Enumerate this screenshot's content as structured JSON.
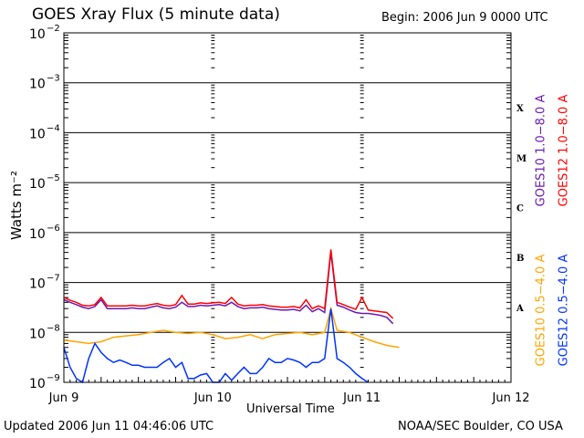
{
  "header": {
    "title": "GOES Xray Flux (5 minute data)",
    "begin": "Begin:  2006 Jun 9 0000 UTC"
  },
  "footer": {
    "updated": "Updated 2006 Jun 11 04:46:06 UTC",
    "credit": "NOAA/SEC Boulder, CO USA"
  },
  "chart_data": {
    "type": "line",
    "title": "GOES Xray Flux (5 minute data)",
    "xlabel": "Universal Time",
    "ylabel": "Watts m⁻²",
    "yscale": "log",
    "ylim": [
      1e-09,
      0.01
    ],
    "xlim": [
      0,
      72
    ],
    "x_unit": "hours since 2006 Jun 9 0000 UTC",
    "x_ticks": [
      {
        "x": 0,
        "label": "Jun 9"
      },
      {
        "x": 24,
        "label": "Jun 10"
      },
      {
        "x": 48,
        "label": "Jun 11"
      },
      {
        "x": 72,
        "label": "Jun 12"
      }
    ],
    "y_ticks": [
      {
        "exp": -9,
        "label": "10",
        "sup": "−9"
      },
      {
        "exp": -8,
        "label": "10",
        "sup": "−8"
      },
      {
        "exp": -7,
        "label": "10",
        "sup": "−7"
      },
      {
        "exp": -6,
        "label": "10",
        "sup": "−6"
      },
      {
        "exp": -5,
        "label": "10",
        "sup": "−5"
      },
      {
        "exp": -4,
        "label": "10",
        "sup": "−4"
      },
      {
        "exp": -3,
        "label": "10",
        "sup": "−3"
      },
      {
        "exp": -2,
        "label": "10",
        "sup": "−2"
      }
    ],
    "flare_classes": [
      {
        "label": "A",
        "exp": -7.5
      },
      {
        "label": "B",
        "exp": -6.5
      },
      {
        "label": "C",
        "exp": -5.5
      },
      {
        "label": "M",
        "exp": -4.5
      },
      {
        "label": "X",
        "exp": -3.5
      }
    ],
    "series": [
      {
        "name": "GOES10 1.0−8.0 A",
        "color": "#6a1bb0",
        "x": [
          0,
          1,
          2,
          3,
          4,
          5,
          6,
          7,
          8,
          9,
          10,
          11,
          12,
          13,
          14,
          15,
          16,
          17,
          18,
          19,
          20,
          21,
          22,
          23,
          24,
          25,
          26,
          27,
          28,
          29,
          30,
          31,
          32,
          33,
          34,
          35,
          36,
          37,
          38,
          39,
          40,
          41,
          42,
          43,
          44,
          45,
          46,
          47,
          48,
          49,
          50,
          51,
          52,
          53
        ],
        "y": [
          4.5e-08,
          4e-08,
          3.6e-08,
          3.2e-08,
          3e-08,
          3.3e-08,
          4.5e-08,
          3e-08,
          3e-08,
          3e-08,
          3e-08,
          3.1e-08,
          3e-08,
          3e-08,
          3.2e-08,
          3.4e-08,
          3.1e-08,
          3e-08,
          3.2e-08,
          4e-08,
          3.3e-08,
          3.3e-08,
          3.5e-08,
          3.4e-08,
          3.5e-08,
          3.6e-08,
          3.4e-08,
          4e-08,
          3.3e-08,
          3e-08,
          3.1e-08,
          3.1e-08,
          3.2e-08,
          3e-08,
          2.9e-08,
          2.8e-08,
          2.8e-08,
          2.9e-08,
          2.7e-08,
          3.5e-08,
          2.6e-08,
          3e-08,
          2.5e-08,
          4e-07,
          3.5e-08,
          3.2e-08,
          2.8e-08,
          2.5e-08,
          2.4e-08,
          2.4e-08,
          2.3e-08,
          2.2e-08,
          2e-08,
          1.5e-08
        ]
      },
      {
        "name": "GOES12 1.0−8.0 A",
        "color": "#ff0000",
        "x": [
          0,
          1,
          2,
          3,
          4,
          5,
          6,
          7,
          8,
          9,
          10,
          11,
          12,
          13,
          14,
          15,
          16,
          17,
          18,
          19,
          20,
          21,
          22,
          23,
          24,
          25,
          26,
          27,
          28,
          29,
          30,
          31,
          32,
          33,
          34,
          35,
          36,
          37,
          38,
          39,
          40,
          41,
          42,
          43,
          44,
          45,
          46,
          47,
          48,
          49,
          50,
          51,
          52,
          53
        ],
        "y": [
          5e-08,
          4.4e-08,
          4e-08,
          3.5e-08,
          3.4e-08,
          3.6e-08,
          5e-08,
          3.4e-08,
          3.4e-08,
          3.4e-08,
          3.4e-08,
          3.5e-08,
          3.4e-08,
          3.4e-08,
          3.6e-08,
          3.8e-08,
          3.5e-08,
          3.4e-08,
          3.6e-08,
          5.5e-08,
          3.7e-08,
          3.7e-08,
          3.9e-08,
          3.8e-08,
          3.9e-08,
          4e-08,
          3.8e-08,
          5e-08,
          3.7e-08,
          3.4e-08,
          3.5e-08,
          3.5e-08,
          3.6e-08,
          3.4e-08,
          3.3e-08,
          3.2e-08,
          3.2e-08,
          3.3e-08,
          3.1e-08,
          4.5e-08,
          3e-08,
          3.4e-08,
          3e-08,
          4.6e-07,
          4e-08,
          3.6e-08,
          3.2e-08,
          2.9e-08,
          5e-08,
          2.8e-08,
          2.7e-08,
          2.6e-08,
          2.5e-08,
          1.9e-08
        ]
      },
      {
        "name": "GOES10 0.5−4.0 A",
        "color": "#ffa500",
        "x": [
          0,
          2,
          4,
          6,
          8,
          10,
          12,
          14,
          16,
          18,
          20,
          22,
          24,
          26,
          28,
          30,
          32,
          34,
          36,
          38,
          40,
          42,
          43,
          44,
          46,
          48,
          50,
          52,
          54
        ],
        "y": [
          7e-09,
          6.5e-09,
          6e-09,
          6.5e-09,
          8e-09,
          8.5e-09,
          9e-09,
          1e-08,
          1.1e-08,
          1e-08,
          9.5e-09,
          1e-08,
          9e-09,
          7.5e-09,
          8e-09,
          9e-09,
          7.5e-09,
          9e-09,
          9.5e-09,
          1e-08,
          9e-09,
          1e-08,
          3e-08,
          1.1e-08,
          1e-08,
          8e-09,
          6.5e-09,
          5.5e-09,
          5e-09
        ]
      },
      {
        "name": "GOES12 0.5−4.0 A",
        "color": "#0033ff",
        "x": [
          0,
          1,
          2,
          3,
          4,
          5,
          6,
          7,
          8,
          9,
          10,
          11,
          12,
          13,
          14,
          15,
          16,
          17,
          18,
          19,
          20,
          21,
          22,
          23,
          24,
          25,
          26,
          27,
          28,
          29,
          30,
          31,
          32,
          33,
          34,
          35,
          36,
          37,
          38,
          39,
          40,
          41,
          42,
          43,
          44,
          45,
          46,
          47,
          48,
          49
        ],
        "y": [
          5e-09,
          2e-09,
          1.2e-09,
          1e-09,
          3e-09,
          6e-09,
          4e-09,
          3e-09,
          2.5e-09,
          2.8e-09,
          2.5e-09,
          2.2e-09,
          2.2e-09,
          2e-09,
          2e-09,
          2e-09,
          2.5e-09,
          3e-09,
          2e-09,
          2.5e-09,
          1.2e-09,
          1.2e-09,
          1.4e-09,
          1.5e-09,
          1e-09,
          1e-09,
          1.5e-09,
          1.1e-09,
          1.5e-09,
          2e-09,
          1.5e-09,
          1.5e-09,
          2e-09,
          3e-09,
          2.5e-09,
          2.5e-09,
          3e-09,
          2.8e-09,
          2.5e-09,
          2e-09,
          2.5e-09,
          2.5e-09,
          3e-09,
          3e-08,
          3e-09,
          2.5e-09,
          2e-09,
          1.5e-09,
          1.2e-09,
          1e-09
        ]
      }
    ]
  }
}
